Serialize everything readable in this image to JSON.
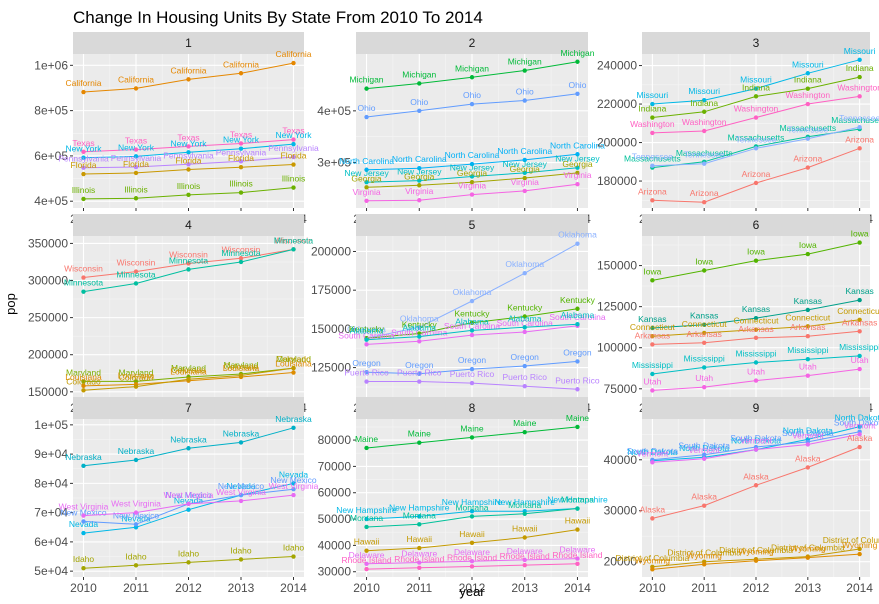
{
  "chart_data": {
    "type": "line",
    "title": "Change In Housing Units By State From 2010 To 2014",
    "xlabel": "year",
    "ylabel": "pop",
    "x": [
      2010,
      2011,
      2012,
      2013,
      2014
    ],
    "x_ticks": [
      "2010",
      "2011",
      "2012",
      "2013",
      "2014"
    ],
    "xlim": [
      2009.8,
      2014.2
    ],
    "facets": [
      {
        "label": "1",
        "ylim": [
          370000,
          1050000
        ],
        "y_ticks": [
          {
            "v": 400000,
            "t": "4e+05"
          },
          {
            "v": 600000,
            "t": "6e+05"
          },
          {
            "v": 800000,
            "t": "8e+05"
          },
          {
            "v": 1000000,
            "t": "1e+06"
          }
        ],
        "series": [
          {
            "name": "California",
            "color": "#E58700",
            "values": [
              882000,
              898000,
              938000,
              965000,
              1010000
            ]
          },
          {
            "name": "Texas",
            "color": "#FF61C3",
            "values": [
              618000,
              628000,
              642000,
              655000,
              672000
            ]
          },
          {
            "name": "New York",
            "color": "#00B8E7",
            "values": [
              592000,
              598000,
              616000,
              632000,
              652000
            ]
          },
          {
            "name": "Pennsylvania",
            "color": "#B983FF",
            "values": [
              548000,
              551000,
              563000,
              576000,
              595000
            ]
          },
          {
            "name": "Florida",
            "color": "#C99800",
            "values": [
              520000,
              525000,
              540000,
              550000,
              562000
            ]
          },
          {
            "name": "Illinois",
            "color": "#6BB100",
            "values": [
              410000,
              413000,
              428000,
              438000,
              460000
            ]
          }
        ]
      },
      {
        "label": "2",
        "ylim": [
          212000,
          510000
        ],
        "y_ticks": [
          {
            "v": 300000,
            "t": "3e+05"
          },
          {
            "v": 400000,
            "t": "4e+05"
          }
        ],
        "series": [
          {
            "name": "Michigan",
            "color": "#00BA38",
            "values": [
              443000,
              453000,
              465000,
              478000,
              495000
            ]
          },
          {
            "name": "Ohio",
            "color": "#619CFF",
            "values": [
              388000,
              400000,
              413000,
              420000,
              433000
            ]
          },
          {
            "name": "North Carolina",
            "color": "#00B0F6",
            "values": [
              286000,
              289000,
              297000,
              305000,
              316000
            ]
          },
          {
            "name": "New Jersey",
            "color": "#00BFC4",
            "values": [
              262000,
              265000,
              273000,
              280000,
              290000
            ]
          },
          {
            "name": "Georgia",
            "color": "#A3A500",
            "values": [
              252000,
              256000,
              262000,
              270000,
              280000
            ]
          },
          {
            "name": "Virginia",
            "color": "#F564E3",
            "values": [
              226000,
              227000,
              238000,
              245000,
              258000
            ]
          }
        ]
      },
      {
        "label": "3",
        "ylim": [
          166000,
          246000
        ],
        "y_ticks": [
          {
            "v": 180000,
            "t": "180000"
          },
          {
            "v": 200000,
            "t": "200000"
          },
          {
            "v": 220000,
            "t": "220000"
          },
          {
            "v": 240000,
            "t": "240000"
          }
        ],
        "series": [
          {
            "name": "Missouri",
            "color": "#00B8E7",
            "values": [
              220000,
              222000,
              228000,
              236000,
              243000
            ]
          },
          {
            "name": "Indiana",
            "color": "#6BB100",
            "values": [
              213000,
              216000,
              224000,
              228000,
              234000
            ]
          },
          {
            "name": "Washington",
            "color": "#FF61C3",
            "values": [
              205000,
              206000,
              213000,
              220000,
              224000
            ]
          },
          {
            "name": "Massachusetts",
            "color": "#00C19A",
            "values": [
              187000,
              190000,
              198000,
              203000,
              207000
            ]
          },
          {
            "name": "Tennessee",
            "color": "#8AB1FF",
            "values": [
              188000,
              189000,
              197000,
              202000,
              208000
            ]
          },
          {
            "name": "Arizona",
            "color": "#F8766D",
            "values": [
              170000,
              169000,
              179000,
              187000,
              197000
            ]
          }
        ]
      },
      {
        "label": "4",
        "ylim": [
          143000,
          360000
        ],
        "y_ticks": [
          {
            "v": 150000,
            "t": "150000"
          },
          {
            "v": 200000,
            "t": "200000"
          },
          {
            "v": 250000,
            "t": "250000"
          },
          {
            "v": 300000,
            "t": "300000"
          },
          {
            "v": 350000,
            "t": "350000"
          }
        ],
        "series": [
          {
            "name": "Wisconsin",
            "color": "#F8766D",
            "values": [
              304000,
              312000,
              323000,
              330000,
              342000
            ]
          },
          {
            "name": "Minnesota",
            "color": "#00BFA0",
            "values": [
              285000,
              296000,
              315000,
              325000,
              342000
            ]
          },
          {
            "name": "Maryland",
            "color": "#7CAE00",
            "values": [
              164000,
              164000,
              170000,
              174000,
              182000
            ]
          },
          {
            "name": "Louisiana",
            "color": "#DE8C00",
            "values": [
              158000,
              160000,
              165000,
              170000,
              176000
            ]
          },
          {
            "name": "Colorado",
            "color": "#C49A00",
            "values": [
              152000,
              157000,
              167000,
              172000,
              182000
            ]
          }
        ]
      },
      {
        "label": "5",
        "ylim": [
          106000,
          210000
        ],
        "y_ticks": [
          {
            "v": 125000,
            "t": "125000"
          },
          {
            "v": 150000,
            "t": "150000"
          },
          {
            "v": 175000,
            "t": "175000"
          },
          {
            "v": 200000,
            "t": "200000"
          }
        ],
        "series": [
          {
            "name": "Oklahoma",
            "color": "#8AB1FF",
            "values": [
              144000,
              151000,
              168000,
              186000,
              205000
            ]
          },
          {
            "name": "Kentucky",
            "color": "#53B400",
            "values": [
              144000,
              147000,
              154000,
              158000,
              163000
            ]
          },
          {
            "name": "South Carolina",
            "color": "#E76BF3",
            "values": [
              140000,
              142000,
              146000,
              148000,
              152000
            ]
          },
          {
            "name": "Alabama",
            "color": "#00BFC4",
            "values": [
              143000,
              145000,
              149000,
              151000,
              153000
            ]
          },
          {
            "name": "Oregon",
            "color": "#619CFF",
            "values": [
              122000,
              121000,
              124000,
              126000,
              129000
            ]
          },
          {
            "name": "Puerto Rico",
            "color": "#B983FF",
            "values": [
              116000,
              116000,
              115000,
              113000,
              111000
            ]
          }
        ]
      },
      {
        "label": "6",
        "ylim": [
          70000,
          168000
        ],
        "y_ticks": [
          {
            "v": 75000,
            "t": "75000"
          },
          {
            "v": 100000,
            "t": "100000"
          },
          {
            "v": 125000,
            "t": "125000"
          },
          {
            "v": 150000,
            "t": "150000"
          }
        ],
        "series": [
          {
            "name": "Iowa",
            "color": "#53B400",
            "values": [
              141000,
              147000,
              153000,
              157000,
              164000
            ]
          },
          {
            "name": "Kansas",
            "color": "#00A08A",
            "values": [
              112000,
              114000,
              118000,
              123000,
              129000
            ]
          },
          {
            "name": "Connecticut",
            "color": "#C49A00",
            "values": [
              107000,
              109000,
              111000,
              113000,
              117000
            ]
          },
          {
            "name": "Arkansas",
            "color": "#F8766D",
            "values": [
              102000,
              103000,
              106000,
              107000,
              110000
            ]
          },
          {
            "name": "Mississippi",
            "color": "#00BFC4",
            "values": [
              84000,
              88000,
              91000,
              93000,
              95000
            ]
          },
          {
            "name": "Utah",
            "color": "#F564E3",
            "values": [
              74000,
              76000,
              80000,
              83000,
              87000
            ]
          }
        ]
      },
      {
        "label": "7",
        "ylim": [
          48000,
          102000
        ],
        "y_ticks": [
          {
            "v": 50000,
            "t": "5e+04"
          },
          {
            "v": 60000,
            "t": "6e+04"
          },
          {
            "v": 70000,
            "t": "7e+04"
          },
          {
            "v": 80000,
            "t": "8e+04"
          },
          {
            "v": 90000,
            "t": "9e+04"
          },
          {
            "v": 100000,
            "t": "1e+05"
          }
        ],
        "series": [
          {
            "name": "Nebraska",
            "color": "#00B0C7",
            "values": [
              86000,
              88000,
              92000,
              94000,
              99000
            ]
          },
          {
            "name": "Nevada",
            "color": "#00B8E7",
            "values": [
              63000,
              65000,
              71000,
              76000,
              80000
            ]
          },
          {
            "name": "New Mexico",
            "color": "#619CFF",
            "values": [
              67000,
              66000,
              73000,
              76000,
              78000
            ]
          },
          {
            "name": "West Virginia",
            "color": "#E76BF3",
            "values": [
              69000,
              70000,
              73000,
              74000,
              76000
            ]
          },
          {
            "name": "Idaho",
            "color": "#A3A500",
            "values": [
              51000,
              52000,
              53000,
              54000,
              55000
            ]
          }
        ]
      },
      {
        "label": "8",
        "ylim": [
          28000,
          88000
        ],
        "y_ticks": [
          {
            "v": 30000,
            "t": "30000"
          },
          {
            "v": 40000,
            "t": "40000"
          },
          {
            "v": 50000,
            "t": "50000"
          },
          {
            "v": 60000,
            "t": "60000"
          },
          {
            "v": 70000,
            "t": "70000"
          },
          {
            "v": 80000,
            "t": "80000"
          }
        ],
        "series": [
          {
            "name": "Maine",
            "color": "#00BA38",
            "values": [
              77000,
              79000,
              81000,
              83000,
              85000
            ]
          },
          {
            "name": "New Hampshire",
            "color": "#00B8E7",
            "values": [
              50000,
              51000,
              53000,
              53000,
              54000
            ]
          },
          {
            "name": "Montana",
            "color": "#00C19A",
            "values": [
              47000,
              48000,
              51000,
              52000,
              54000
            ]
          },
          {
            "name": "Hawaii",
            "color": "#C49A00",
            "values": [
              38000,
              39000,
              41000,
              43000,
              46000
            ]
          },
          {
            "name": "Delaware",
            "color": "#E76BF3",
            "values": [
              33000,
              33500,
              34000,
              34500,
              35000
            ]
          },
          {
            "name": "Rhode Island",
            "color": "#FF61C3",
            "values": [
              31000,
              31500,
              32000,
              32500,
              33000
            ]
          }
        ]
      },
      {
        "label": "9",
        "ylim": [
          17000,
          48000
        ],
        "y_ticks": [
          {
            "v": 20000,
            "t": "20000"
          },
          {
            "v": 30000,
            "t": "30000"
          },
          {
            "v": 40000,
            "t": "40000"
          }
        ],
        "series": [
          {
            "name": "North Dakota",
            "color": "#00B8E7",
            "values": [
              39800,
              40500,
              42000,
              44000,
              46500
            ]
          },
          {
            "name": "South Dakota",
            "color": "#619CFF",
            "values": [
              40000,
              41000,
              42500,
              43500,
              45500
            ]
          },
          {
            "name": "Vermont",
            "color": "#E76BF3",
            "values": [
              39500,
              40200,
              42000,
              43000,
              45000
            ]
          },
          {
            "name": "Alaska",
            "color": "#F8766D",
            "values": [
              28500,
              31000,
              35000,
              38500,
              42500
            ]
          },
          {
            "name": "District of Columbia",
            "color": "#C49A00",
            "values": [
              19000,
              20000,
              20500,
              21000,
              22500
            ]
          },
          {
            "name": "Wyoming",
            "color": "#DE8C00",
            "values": [
              18500,
              19500,
              20200,
              20800,
              21500
            ]
          }
        ]
      }
    ]
  }
}
